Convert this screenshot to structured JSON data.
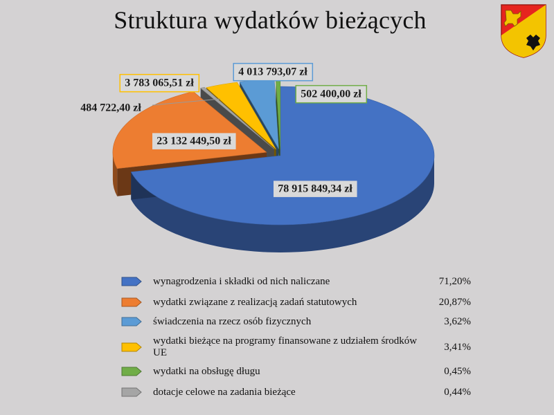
{
  "title": "Struktura wydatków bieżących",
  "chart_data": {
    "type": "pie",
    "title": "Struktura wydatków bieżących",
    "slices": [
      {
        "name": "wynagrodzenia i składki od nich naliczane",
        "value": 78915849.34,
        "value_label": "78 915 849,34 zł",
        "percent_label": "71,20%",
        "color": "#4472c4"
      },
      {
        "name": "wydatki związane z realizacją zadań statutowych",
        "value": 23132449.5,
        "value_label": "23 132 449,50 zł",
        "percent_label": "20,87%",
        "color": "#ed7d31"
      },
      {
        "name": "dotacje celowe na zadania bieżące",
        "value": 484722.4,
        "value_label": "484 722,40 zł",
        "percent_label": "0,44%",
        "color": "#a5a5a5"
      },
      {
        "name": "wydatki bieżące na programy finansowane z udziałem środków UE",
        "value": 3783065.51,
        "value_label": "3 783 065,51 zł",
        "percent_label": "3,41%",
        "color": "#ffc000"
      },
      {
        "name": "świadczenia na rzecz osób fizycznych",
        "value": 4013793.07,
        "value_label": "4 013 793,07 zł",
        "percent_label": "3,62%",
        "color": "#5b9bd5"
      },
      {
        "name": "wydatki na obsługę długu",
        "value": 502400.0,
        "value_label": "502 400,00 zł",
        "percent_label": "0,45%",
        "color": "#70ad47"
      }
    ],
    "legend_order": [
      0,
      1,
      4,
      3,
      5,
      2
    ]
  }
}
